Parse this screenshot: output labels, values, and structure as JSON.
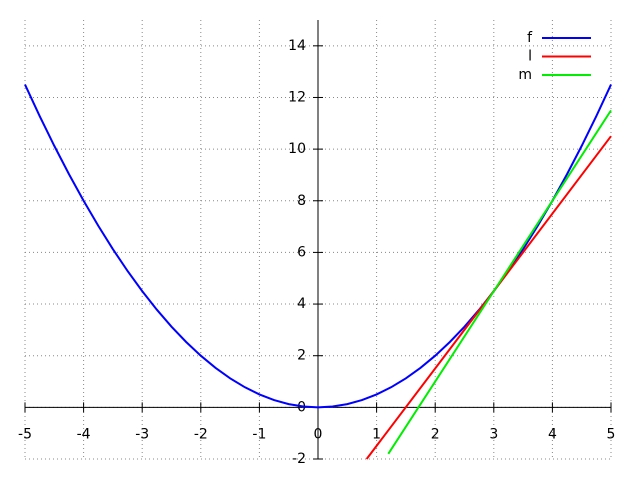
{
  "chart_data": {
    "type": "line",
    "xlim": [
      -5,
      5
    ],
    "ylim": [
      -2,
      15
    ],
    "xticks": [
      -5,
      -4,
      -3,
      -2,
      -1,
      0,
      1,
      2,
      3,
      4,
      5
    ],
    "yticks": [
      -2,
      0,
      2,
      4,
      6,
      8,
      10,
      12,
      14
    ],
    "grid": true,
    "legend": "top-right",
    "series": [
      {
        "name": "f",
        "color": "#0000ff",
        "x": [
          -5,
          -4.75,
          -4.5,
          -4.25,
          -4,
          -3.75,
          -3.5,
          -3.25,
          -3,
          -2.75,
          -2.5,
          -2.25,
          -2,
          -1.75,
          -1.5,
          -1.25,
          -1,
          -0.75,
          -0.5,
          -0.25,
          0,
          0.25,
          0.5,
          0.75,
          1,
          1.25,
          1.5,
          1.75,
          2,
          2.25,
          2.5,
          2.75,
          3,
          3.25,
          3.5,
          3.75,
          4,
          4.25,
          4.5,
          4.75,
          5
        ],
        "values": [
          12.5,
          11.28125,
          10.125,
          9.03125,
          8,
          7.03125,
          6.125,
          5.28125,
          4.5,
          3.78125,
          3.125,
          2.53125,
          2,
          1.53125,
          1.125,
          0.78125,
          0.5,
          0.28125,
          0.125,
          0.03125,
          0,
          0.03125,
          0.125,
          0.28125,
          0.5,
          0.78125,
          1.125,
          1.53125,
          2,
          2.53125,
          3.125,
          3.78125,
          4.5,
          5.28125,
          6.125,
          7.03125,
          8,
          9.03125,
          10.125,
          11.28125,
          12.5
        ]
      },
      {
        "name": "l",
        "color": "#ff0000",
        "x": [
          0.83,
          5
        ],
        "values": [
          -2,
          10.5
        ]
      },
      {
        "name": "m",
        "color": "#00ee00",
        "x": [
          1.2,
          5
        ],
        "values": [
          -1.8,
          11.5
        ]
      }
    ]
  }
}
